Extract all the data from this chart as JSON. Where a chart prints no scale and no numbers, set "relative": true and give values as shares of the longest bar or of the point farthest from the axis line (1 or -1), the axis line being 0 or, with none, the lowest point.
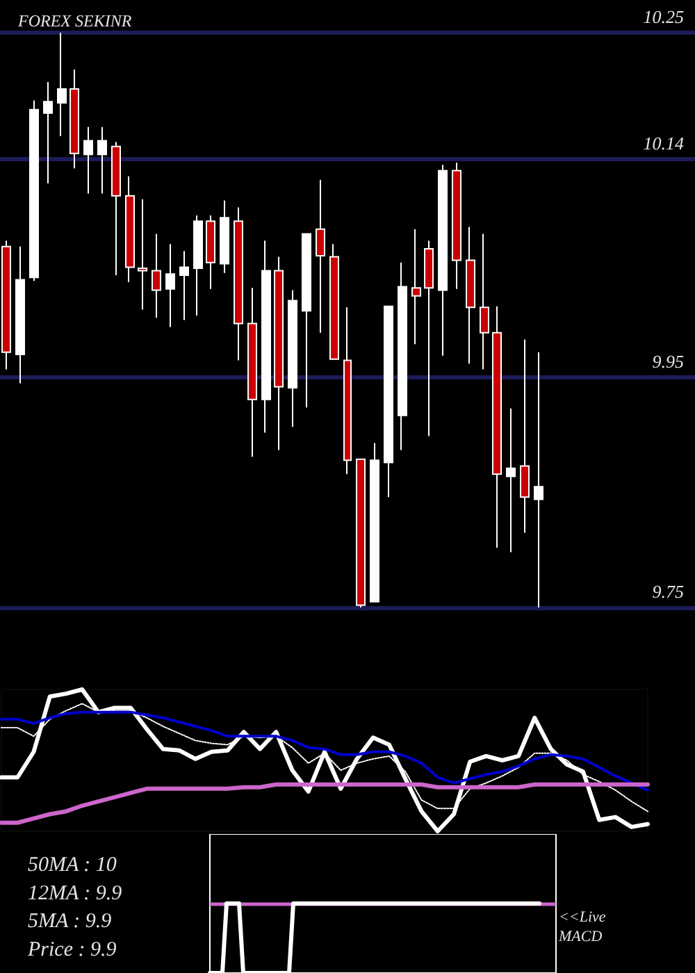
{
  "chart_data": [
    {
      "type": "candlestick",
      "title": "FOREX SEKINR",
      "categories": [
        null,
        null,
        null,
        null,
        null,
        null,
        null,
        null,
        null,
        null,
        null,
        null,
        null,
        null,
        null,
        null,
        null,
        null,
        null,
        null,
        null,
        null,
        null,
        null,
        null,
        null,
        null,
        null,
        null,
        null,
        null,
        null,
        null,
        null,
        null,
        null,
        null,
        null,
        null,
        null,
        null,
        null,
        null,
        null,
        null,
        null,
        null,
        null,
        null,
        null,
        null
      ],
      "ohlc": [
        [
          10.064,
          10.069,
          9.957,
          9.972
        ],
        [
          9.97,
          10.064,
          9.945,
          10.035
        ],
        [
          10.037,
          10.191,
          10.034,
          10.183
        ],
        [
          10.18,
          10.207,
          10.119,
          10.19
        ],
        [
          10.189,
          10.25,
          10.16,
          10.201
        ],
        [
          10.201,
          10.218,
          10.132,
          10.145
        ],
        [
          10.144,
          10.168,
          10.11,
          10.156
        ],
        [
          10.144,
          10.168,
          10.11,
          10.156
        ],
        [
          10.151,
          10.155,
          10.039,
          10.108
        ],
        [
          10.108,
          10.125,
          10.033,
          10.046
        ],
        [
          10.045,
          10.105,
          10.009,
          10.043
        ],
        [
          10.043,
          10.075,
          10.002,
          10.026
        ],
        [
          10.027,
          10.066,
          9.994,
          10.04
        ],
        [
          10.039,
          10.06,
          10.0,
          10.046
        ],
        [
          10.045,
          10.091,
          10.004,
          10.086
        ],
        [
          10.086,
          10.091,
          10.027,
          10.05
        ],
        [
          10.049,
          10.104,
          10.041,
          10.089
        ],
        [
          10.086,
          10.098,
          9.965,
          9.997
        ],
        [
          9.997,
          10.028,
          9.881,
          9.931
        ],
        [
          9.931,
          10.069,
          9.902,
          10.043
        ],
        [
          10.043,
          10.055,
          9.887,
          9.942
        ],
        [
          9.941,
          10.026,
          9.907,
          10.017
        ],
        [
          10.008,
          10.075,
          9.924,
          10.075
        ],
        [
          10.079,
          10.122,
          9.989,
          10.056
        ],
        [
          10.055,
          10.066,
          9.966,
          9.966
        ],
        [
          9.965,
          10.011,
          9.866,
          9.878
        ],
        [
          9.879,
          9.879,
          9.75,
          9.752
        ],
        [
          9.755,
          9.893,
          9.755,
          9.878
        ],
        [
          9.876,
          10.012,
          9.846,
          10.012
        ],
        [
          9.917,
          10.05,
          9.887,
          10.029
        ],
        [
          10.028,
          10.079,
          9.979,
          10.021
        ],
        [
          10.062,
          10.069,
          9.899,
          10.028
        ],
        [
          10.026,
          10.135,
          9.969,
          10.13
        ],
        [
          10.13,
          10.137,
          10.027,
          10.052
        ],
        [
          10.052,
          10.081,
          9.962,
          10.011
        ],
        [
          10.011,
          10.075,
          9.957,
          9.989
        ],
        [
          9.989,
          10.012,
          9.802,
          9.866
        ],
        [
          9.864,
          9.923,
          9.798,
          9.871
        ],
        [
          9.873,
          9.983,
          9.815,
          9.846
        ],
        [
          9.844,
          9.972,
          9.75,
          9.855
        ],
        null,
        null,
        null,
        null,
        null,
        null,
        null,
        null,
        null,
        null,
        null
      ],
      "colors": [
        "#cc0000",
        "#ffffff",
        "#ffffff",
        "#ffffff",
        "#ffffff",
        "#cc0000",
        "#ffffff",
        "#ffffff",
        "#cc0000",
        "#cc0000",
        "#cc0000",
        "#cc0000",
        "#ffffff",
        "#ffffff",
        "#ffffff",
        "#cc0000",
        "#ffffff",
        "#cc0000",
        "#cc0000",
        "#ffffff",
        "#cc0000",
        "#ffffff",
        "#ffffff",
        "#cc0000",
        "#cc0000",
        "#cc0000",
        "#cc0000",
        "#ffffff",
        "#ffffff",
        "#ffffff",
        "#cc0000",
        "#cc0000",
        "#ffffff",
        "#cc0000",
        "#cc0000",
        "#cc0000",
        "#cc0000",
        "#ffffff",
        "#cc0000",
        "#ffffff",
        null,
        null,
        null,
        null,
        null,
        null,
        null,
        null,
        null,
        null,
        null
      ],
      "ylim": [
        9.75,
        10.25
      ],
      "yticks": [
        9.75,
        9.95,
        10.14,
        10.25
      ],
      "grid": "y",
      "tick_labels": "y"
    },
    {
      "type": "line",
      "relative": true,
      "marker": "none",
      "tick_labels": false,
      "categories": [
        null,
        null,
        null,
        null,
        null,
        null,
        null,
        null,
        null,
        null,
        null,
        null,
        null,
        null,
        null,
        null,
        null,
        null,
        null,
        null,
        null,
        null,
        null,
        null,
        null,
        null,
        null,
        null,
        null,
        null,
        null,
        null,
        null,
        null,
        null,
        null,
        null,
        null,
        null,
        null,
        null
      ],
      "series": [
        {
          "color": "#ffffff",
          "values": [
            0.38,
            0.38,
            0.56,
            0.95,
            0.97,
            1,
            0.84,
            0.87,
            0.87,
            0.72,
            0.58,
            0.57,
            0.51,
            0.56,
            0.57,
            0.7,
            0.58,
            0.7,
            0.43,
            0.28,
            0.56,
            0.3,
            0.51,
            0.66,
            0.61,
            0.37,
            0.14,
            0,
            0.12,
            0.49,
            0.53,
            0.5,
            0.53,
            0.8,
            0.58,
            0.47,
            0.42,
            0.08,
            0.1,
            0.03,
            0.05
          ]
        },
        {
          "color": "#ffffff",
          "line_style": "dotted",
          "values": [
            0.73,
            0.73,
            0.67,
            0.79,
            0.85,
            0.9,
            0.84,
            0.85,
            0.85,
            0.8,
            0.74,
            0.69,
            0.64,
            0.62,
            0.61,
            0.67,
            0.66,
            0.67,
            0.59,
            0.48,
            0.55,
            0.43,
            0.48,
            0.51,
            0.53,
            0.42,
            0.22,
            0.16,
            0.16,
            0.3,
            0.34,
            0.39,
            0.45,
            0.55,
            0.55,
            0.5,
            0.4,
            0.35,
            0.29,
            0.21,
            0.14
          ]
        },
        {
          "color": "#0000cc",
          "values": [
            0.79,
            0.79,
            0.76,
            0.8,
            0.83,
            0.84,
            0.84,
            0.84,
            0.84,
            0.82,
            0.8,
            0.77,
            0.74,
            0.71,
            0.67,
            0.67,
            0.67,
            0.67,
            0.64,
            0.59,
            0.58,
            0.54,
            0.54,
            0.56,
            0.56,
            0.53,
            0.48,
            0.38,
            0.34,
            0.37,
            0.4,
            0.42,
            0.46,
            0.51,
            0.54,
            0.53,
            0.51,
            0.45,
            0.39,
            0.34,
            0.29
          ]
        },
        {
          "color": "#cc66cc",
          "values": [
            0.06,
            0.06,
            0.09,
            0.12,
            0.14,
            0.18,
            0.21,
            0.24,
            0.27,
            0.3,
            0.3,
            0.3,
            0.3,
            0.3,
            0.3,
            0.31,
            0.31,
            0.33,
            0.33,
            0.33,
            0.33,
            0.33,
            0.33,
            0.33,
            0.33,
            0.33,
            0.33,
            0.31,
            0.31,
            0.31,
            0.31,
            0.31,
            0.31,
            0.33,
            0.33,
            0.33,
            0.33,
            0.33,
            0.33,
            0.33,
            0.33
          ]
        }
      ]
    },
    {
      "type": "line",
      "relative": true,
      "marker": "none",
      "tick_labels": false,
      "categories": [
        null,
        null,
        null,
        null,
        null,
        null,
        null,
        null,
        null,
        null,
        null,
        null,
        null,
        null,
        null,
        null,
        null,
        null,
        null,
        null,
        null,
        null,
        null,
        null,
        null,
        null,
        null,
        null,
        null,
        null,
        null,
        null,
        null,
        null,
        null,
        null,
        null,
        null,
        null,
        null,
        null,
        null,
        null,
        null,
        null,
        null,
        null,
        null,
        null,
        null,
        null,
        null,
        null,
        null,
        null,
        null,
        null,
        null,
        null,
        null,
        null,
        null,
        null,
        null,
        null,
        null,
        null,
        null,
        null,
        null,
        null,
        null,
        null,
        null,
        null,
        null,
        null,
        null,
        null,
        null,
        null,
        null,
        null,
        null
      ],
      "series": [
        {
          "color": "#ffffff",
          "values": [
            -1,
            -1,
            -1,
            -1,
            0,
            0,
            0,
            0,
            -1,
            -1,
            -1,
            -1,
            -1,
            -1,
            -1,
            -1,
            -1,
            -1,
            -1,
            -1,
            0,
            0,
            0,
            0,
            0,
            0,
            0,
            0,
            0,
            0,
            0,
            0,
            0,
            0,
            0,
            0,
            0,
            0,
            0,
            0,
            0,
            0,
            0,
            0,
            0,
            0,
            0,
            0,
            0,
            0,
            0,
            0,
            0,
            0,
            0,
            0,
            0,
            0,
            0,
            0,
            0,
            0,
            0,
            0,
            0,
            0,
            0,
            0,
            0,
            0,
            0,
            0,
            0,
            0,
            0,
            0,
            0,
            0,
            0,
            0,
            null,
            null,
            null,
            null
          ]
        }
      ],
      "ref_lines": [
        {
          "axis": "y",
          "value": 0,
          "color": "#cc66cc"
        }
      ],
      "annotations": [
        "50MA : 10",
        "12MA : 9.9",
        "5MA : 9.9",
        "Price : 9.9",
        "<<Live MACD"
      ]
    }
  ]
}
